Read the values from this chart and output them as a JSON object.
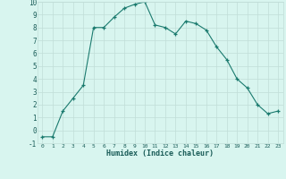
{
  "x": [
    0,
    1,
    2,
    3,
    4,
    5,
    6,
    7,
    8,
    9,
    10,
    11,
    12,
    13,
    14,
    15,
    16,
    17,
    18,
    19,
    20,
    21,
    22,
    23
  ],
  "y": [
    -0.5,
    -0.5,
    1.5,
    2.5,
    3.5,
    8.0,
    8.0,
    8.8,
    9.5,
    9.8,
    10.0,
    8.2,
    8.0,
    7.5,
    8.5,
    8.3,
    7.8,
    6.5,
    5.5,
    4.0,
    3.3,
    2.0,
    1.3,
    1.5
  ],
  "xlabel": "Humidex (Indice chaleur)",
  "ylim": [
    -1,
    10
  ],
  "xlim": [
    -0.5,
    23.5
  ],
  "yticks": [
    -1,
    0,
    1,
    2,
    3,
    4,
    5,
    6,
    7,
    8,
    9,
    10
  ],
  "xticks": [
    0,
    1,
    2,
    3,
    4,
    5,
    6,
    7,
    8,
    9,
    10,
    11,
    12,
    13,
    14,
    15,
    16,
    17,
    18,
    19,
    20,
    21,
    22,
    23
  ],
  "line_color": "#1a7a6e",
  "marker_color": "#1a7a6e",
  "bg_color": "#d8f5ef",
  "grid_color": "#c0ddd8",
  "title": ""
}
